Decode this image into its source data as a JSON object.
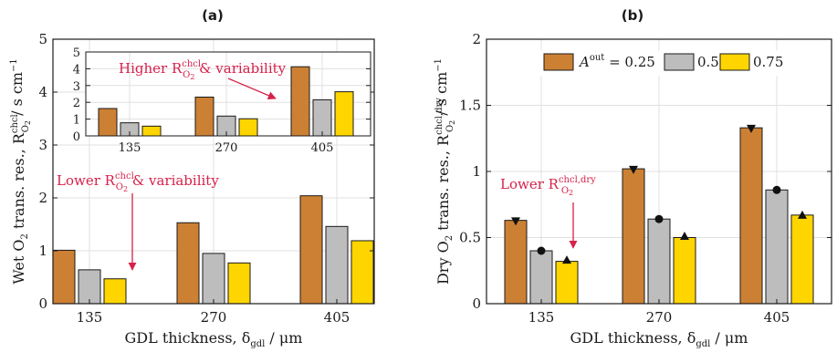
{
  "colors": {
    "s025": "#cc8033",
    "s050": "#bdbdbd",
    "s075": "#ffd500",
    "annotation": "#d6214a",
    "grid": "#e0e0e0"
  },
  "chart_data": [
    {
      "type": "bar",
      "panel_label": "(a)",
      "categories": [
        "135",
        "270",
        "405"
      ],
      "series": [
        {
          "name": "A_out = 0.25",
          "values": [
            1.01,
            1.53,
            2.04
          ]
        },
        {
          "name": "0.5",
          "values": [
            0.64,
            0.95,
            1.46
          ]
        },
        {
          "name": "0.75",
          "values": [
            0.47,
            0.77,
            1.19
          ]
        }
      ],
      "ylim": [
        0,
        5
      ],
      "yticks": [
        "0",
        "1",
        "2",
        "3",
        "4",
        "5"
      ],
      "xlabel": {
        "main": "GDL thickness, δ",
        "sub": "gdl",
        "unit": " / μm"
      },
      "ylabel": {
        "main": "Wet O",
        "sub2": "2",
        "mid": " trans. res., R",
        "sup": "chcl",
        "subO": "O",
        "subO2": "2",
        "unit": " / s cm",
        "unit_sup": "−1"
      },
      "annotation": {
        "lead": "Lower R",
        "sup": "chcl",
        "sub": "O",
        "sub2": "2",
        "tail": " & variability"
      },
      "inset": {
        "categories": [
          "135",
          "270",
          "405"
        ],
        "series": [
          {
            "name": "A_out = 0.25",
            "values": [
              1.63,
              2.31,
              4.12
            ]
          },
          {
            "name": "0.5",
            "values": [
              0.78,
              1.18,
              2.15
            ]
          },
          {
            "name": "0.75",
            "values": [
              0.58,
              1.02,
              2.63
            ]
          }
        ],
        "ylim": [
          0,
          5
        ],
        "yticks": [
          "0",
          "1",
          "2",
          "3",
          "4",
          "5"
        ],
        "annotation": {
          "lead": "Higher R",
          "sup": "chcl",
          "sub": "O",
          "sub2": "2",
          "tail": " & variability"
        }
      }
    },
    {
      "type": "bar",
      "panel_label": "(b)",
      "categories": [
        "135",
        "270",
        "405"
      ],
      "series": [
        {
          "name": "A_out = 0.25",
          "values": [
            0.63,
            1.02,
            1.33
          ],
          "marker": "down-triangle",
          "marker_values": [
            0.625,
            1.015,
            1.325
          ]
        },
        {
          "name": "0.5",
          "values": [
            0.4,
            0.64,
            0.86
          ],
          "marker": "circle",
          "marker_values": [
            0.4,
            0.64,
            0.86
          ]
        },
        {
          "name": "0.75",
          "values": [
            0.32,
            0.5,
            0.67
          ],
          "marker": "up-triangle",
          "marker_values": [
            0.33,
            0.51,
            0.67
          ]
        }
      ],
      "ylim": [
        0,
        2
      ],
      "yticks": [
        "0",
        "0.5",
        "1",
        "1.5",
        "2"
      ],
      "xlabel": {
        "main": "GDL thickness, δ",
        "sub": "gdl",
        "unit": " / μm"
      },
      "ylabel": {
        "main": "Dry O",
        "sub2": "2",
        "mid": " trans. res., R",
        "sup": "chcl,dry",
        "subO": "O",
        "subO2": "2",
        "unit": " / s cm",
        "unit_sup": "−1"
      },
      "annotation": {
        "lead": "Lower R",
        "sup": "chcl,dry",
        "sub": "O",
        "sub2": "2",
        "tail": ""
      },
      "legend": {
        "position": "top",
        "entries": [
          {
            "lead": "A",
            "sup": "out",
            "tail": " = 0.25"
          },
          {
            "lead": "0.5",
            "sup": "",
            "tail": ""
          },
          {
            "lead": "0.75",
            "sup": "",
            "tail": ""
          }
        ]
      }
    }
  ]
}
